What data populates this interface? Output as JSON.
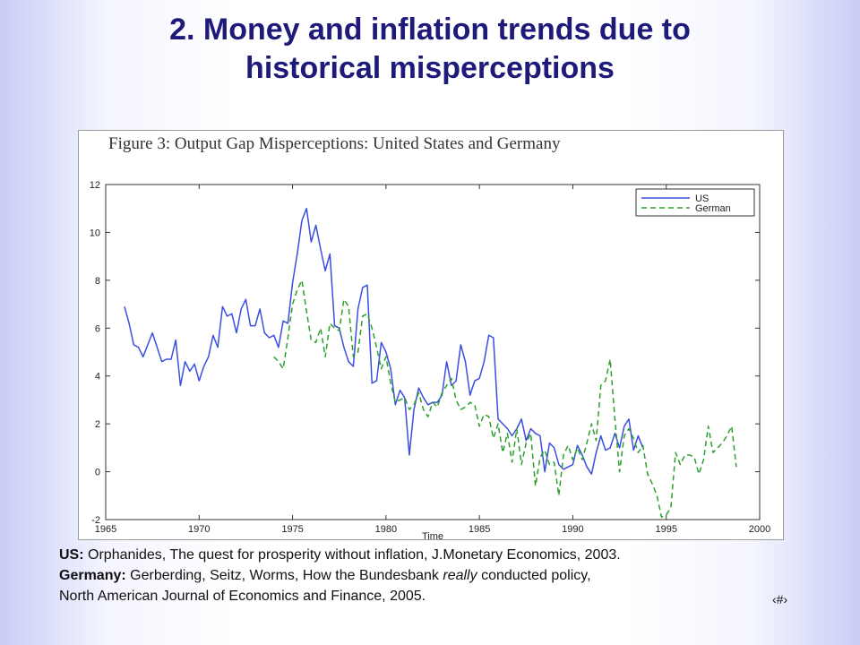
{
  "slide": {
    "title_line1": "2. Money and inflation trends due to",
    "title_line2": "historical misperceptions",
    "page_number": "‹#›"
  },
  "references": {
    "us_label": "US:",
    "us_text": "Orphanides, The quest for prosperity without inflation, J.Monetary Economics, 2003.",
    "germany_label": "Germany:",
    "germany_text_before": "Gerberding, Seitz, Worms, How the Bundesbank",
    "germany_text_emph": "really",
    "germany_text_after": "conducted policy,",
    "germany_text_line2": "North American Journal of Economics and Finance, 2005."
  },
  "colors": {
    "title": "#1d1a7a",
    "us_series": "#3a4ee0",
    "german_series": "#2ea02e"
  },
  "chart_data": {
    "type": "line",
    "title": "Figure 3: Output Gap Misperceptions: United States and Germany",
    "xlabel": "Time",
    "ylabel": "",
    "xlim": [
      1965,
      2000
    ],
    "ylim": [
      -2,
      12
    ],
    "xticks": [
      1965,
      1970,
      1975,
      1980,
      1985,
      1990,
      1995,
      2000
    ],
    "yticks": [
      -2,
      0,
      2,
      4,
      6,
      8,
      10,
      12
    ],
    "legend_position": "top-right",
    "series": [
      {
        "name": "US",
        "style": "solid",
        "color": "#3a4ee0",
        "points": [
          [
            1966.0,
            6.9
          ],
          [
            1966.25,
            6.2
          ],
          [
            1966.5,
            5.3
          ],
          [
            1966.75,
            5.2
          ],
          [
            1967.0,
            4.8
          ],
          [
            1967.25,
            5.3
          ],
          [
            1967.5,
            5.8
          ],
          [
            1967.75,
            5.2
          ],
          [
            1968.0,
            4.6
          ],
          [
            1968.25,
            4.7
          ],
          [
            1968.5,
            4.7
          ],
          [
            1968.75,
            5.5
          ],
          [
            1969.0,
            3.6
          ],
          [
            1969.25,
            4.6
          ],
          [
            1969.5,
            4.2
          ],
          [
            1969.75,
            4.5
          ],
          [
            1970.0,
            3.8
          ],
          [
            1970.25,
            4.4
          ],
          [
            1970.5,
            4.8
          ],
          [
            1970.75,
            5.7
          ],
          [
            1971.0,
            5.2
          ],
          [
            1971.25,
            6.9
          ],
          [
            1971.5,
            6.5
          ],
          [
            1971.75,
            6.6
          ],
          [
            1972.0,
            5.8
          ],
          [
            1972.25,
            6.8
          ],
          [
            1972.5,
            7.2
          ],
          [
            1972.75,
            6.1
          ],
          [
            1973.0,
            6.1
          ],
          [
            1973.25,
            6.8
          ],
          [
            1973.5,
            5.8
          ],
          [
            1973.75,
            5.6
          ],
          [
            1974.0,
            5.7
          ],
          [
            1974.25,
            5.2
          ],
          [
            1974.5,
            6.3
          ],
          [
            1974.75,
            6.2
          ],
          [
            1975.0,
            7.9
          ],
          [
            1975.25,
            9.1
          ],
          [
            1975.5,
            10.5
          ],
          [
            1975.75,
            11.0
          ],
          [
            1976.0,
            9.6
          ],
          [
            1976.25,
            10.3
          ],
          [
            1976.5,
            9.3
          ],
          [
            1976.75,
            8.4
          ],
          [
            1977.0,
            9.1
          ],
          [
            1977.25,
            6.1
          ],
          [
            1977.5,
            6.0
          ],
          [
            1977.75,
            5.2
          ],
          [
            1978.0,
            4.6
          ],
          [
            1978.25,
            4.4
          ],
          [
            1978.5,
            6.8
          ],
          [
            1978.75,
            7.7
          ],
          [
            1979.0,
            7.8
          ],
          [
            1979.25,
            3.7
          ],
          [
            1979.5,
            3.8
          ],
          [
            1979.75,
            5.4
          ],
          [
            1980.0,
            5.0
          ],
          [
            1980.25,
            4.3
          ],
          [
            1980.5,
            2.8
          ],
          [
            1980.75,
            3.4
          ],
          [
            1981.0,
            3.1
          ],
          [
            1981.25,
            0.7
          ],
          [
            1981.5,
            2.6
          ],
          [
            1981.75,
            3.5
          ],
          [
            1982.0,
            3.1
          ],
          [
            1982.25,
            2.8
          ],
          [
            1982.5,
            2.9
          ],
          [
            1982.75,
            2.9
          ],
          [
            1983.0,
            3.2
          ],
          [
            1983.25,
            4.6
          ],
          [
            1983.5,
            3.6
          ],
          [
            1983.75,
            3.8
          ],
          [
            1984.0,
            5.3
          ],
          [
            1984.25,
            4.6
          ],
          [
            1984.5,
            3.2
          ],
          [
            1984.75,
            3.8
          ],
          [
            1985.0,
            3.9
          ],
          [
            1985.25,
            4.6
          ],
          [
            1985.5,
            5.7
          ],
          [
            1985.75,
            5.6
          ],
          [
            1986.0,
            2.2
          ],
          [
            1986.25,
            2.0
          ],
          [
            1986.5,
            1.8
          ],
          [
            1986.75,
            1.5
          ],
          [
            1987.0,
            1.8
          ],
          [
            1987.25,
            2.2
          ],
          [
            1987.5,
            1.3
          ],
          [
            1987.75,
            1.8
          ],
          [
            1988.0,
            1.6
          ],
          [
            1988.25,
            1.5
          ],
          [
            1988.5,
            0.0
          ],
          [
            1988.75,
            1.2
          ],
          [
            1989.0,
            1.0
          ],
          [
            1989.25,
            0.3
          ],
          [
            1989.5,
            0.1
          ],
          [
            1989.75,
            0.2
          ],
          [
            1990.0,
            0.3
          ],
          [
            1990.25,
            1.1
          ],
          [
            1990.5,
            0.7
          ],
          [
            1990.75,
            0.2
          ],
          [
            1991.0,
            -0.1
          ],
          [
            1991.25,
            0.8
          ],
          [
            1991.5,
            1.5
          ],
          [
            1991.75,
            0.9
          ],
          [
            1992.0,
            1.0
          ],
          [
            1992.25,
            1.6
          ],
          [
            1992.5,
            1.0
          ],
          [
            1992.75,
            1.9
          ],
          [
            1993.0,
            2.2
          ],
          [
            1993.25,
            0.9
          ],
          [
            1993.5,
            1.5
          ],
          [
            1993.75,
            1.0
          ]
        ]
      },
      {
        "name": "German",
        "style": "dashed",
        "color": "#2ea02e",
        "points": [
          [
            1974.0,
            4.8
          ],
          [
            1974.25,
            4.6
          ],
          [
            1974.5,
            4.3
          ],
          [
            1974.75,
            5.6
          ],
          [
            1975.0,
            7.0
          ],
          [
            1975.25,
            7.6
          ],
          [
            1975.5,
            8.0
          ],
          [
            1975.75,
            6.7
          ],
          [
            1976.0,
            5.5
          ],
          [
            1976.25,
            5.4
          ],
          [
            1976.5,
            6.0
          ],
          [
            1976.75,
            4.8
          ],
          [
            1977.0,
            6.2
          ],
          [
            1977.25,
            6.0
          ],
          [
            1977.5,
            5.9
          ],
          [
            1977.75,
            7.2
          ],
          [
            1978.0,
            6.9
          ],
          [
            1978.25,
            4.8
          ],
          [
            1978.5,
            5.0
          ],
          [
            1978.75,
            6.5
          ],
          [
            1979.0,
            6.6
          ],
          [
            1979.25,
            6.0
          ],
          [
            1979.5,
            5.2
          ],
          [
            1979.75,
            4.3
          ],
          [
            1980.0,
            4.8
          ],
          [
            1980.25,
            3.7
          ],
          [
            1980.5,
            2.9
          ],
          [
            1980.75,
            3.0
          ],
          [
            1981.0,
            3.1
          ],
          [
            1981.25,
            2.6
          ],
          [
            1981.5,
            2.8
          ],
          [
            1981.75,
            3.3
          ],
          [
            1982.0,
            2.6
          ],
          [
            1982.25,
            2.3
          ],
          [
            1982.5,
            2.9
          ],
          [
            1982.75,
            2.7
          ],
          [
            1983.0,
            3.3
          ],
          [
            1983.25,
            3.6
          ],
          [
            1983.5,
            3.9
          ],
          [
            1983.75,
            3.0
          ],
          [
            1984.0,
            2.6
          ],
          [
            1984.25,
            2.7
          ],
          [
            1984.5,
            2.9
          ],
          [
            1984.75,
            2.8
          ],
          [
            1985.0,
            1.9
          ],
          [
            1985.25,
            2.4
          ],
          [
            1985.5,
            2.3
          ],
          [
            1985.75,
            1.4
          ],
          [
            1986.0,
            2.0
          ],
          [
            1986.25,
            0.8
          ],
          [
            1986.5,
            1.6
          ],
          [
            1986.75,
            0.4
          ],
          [
            1987.0,
            1.8
          ],
          [
            1987.25,
            0.3
          ],
          [
            1987.5,
            1.2
          ],
          [
            1987.75,
            1.6
          ],
          [
            1988.0,
            -0.6
          ],
          [
            1988.25,
            0.6
          ],
          [
            1988.5,
            0.9
          ],
          [
            1988.75,
            0.3
          ],
          [
            1989.0,
            0.4
          ],
          [
            1989.25,
            -1.0
          ],
          [
            1989.5,
            0.7
          ],
          [
            1989.75,
            1.1
          ],
          [
            1990.0,
            0.5
          ],
          [
            1990.25,
            1.0
          ],
          [
            1990.5,
            0.5
          ],
          [
            1990.75,
            1.2
          ],
          [
            1991.0,
            2.0
          ],
          [
            1991.25,
            1.3
          ],
          [
            1991.5,
            3.6
          ],
          [
            1991.75,
            3.8
          ],
          [
            1992.0,
            4.7
          ],
          [
            1992.25,
            2.2
          ],
          [
            1992.5,
            0.0
          ],
          [
            1992.75,
            1.5
          ],
          [
            1993.0,
            1.8
          ],
          [
            1993.25,
            1.4
          ],
          [
            1993.5,
            0.8
          ],
          [
            1993.75,
            1.1
          ],
          [
            1994.0,
            -0.1
          ],
          [
            1994.25,
            -0.5
          ],
          [
            1994.5,
            -1.0
          ],
          [
            1994.75,
            -1.9
          ],
          [
            1995.0,
            -1.8
          ],
          [
            1995.25,
            -1.5
          ],
          [
            1995.5,
            0.8
          ],
          [
            1995.75,
            0.3
          ],
          [
            1996.0,
            0.7
          ],
          [
            1996.25,
            0.7
          ],
          [
            1996.5,
            0.6
          ],
          [
            1996.75,
            -0.1
          ],
          [
            1997.0,
            0.5
          ],
          [
            1997.25,
            1.9
          ],
          [
            1997.5,
            0.8
          ],
          [
            1997.75,
            1.0
          ],
          [
            1998.0,
            1.2
          ],
          [
            1998.25,
            1.5
          ],
          [
            1998.5,
            1.9
          ],
          [
            1998.75,
            0.2
          ]
        ]
      }
    ]
  }
}
